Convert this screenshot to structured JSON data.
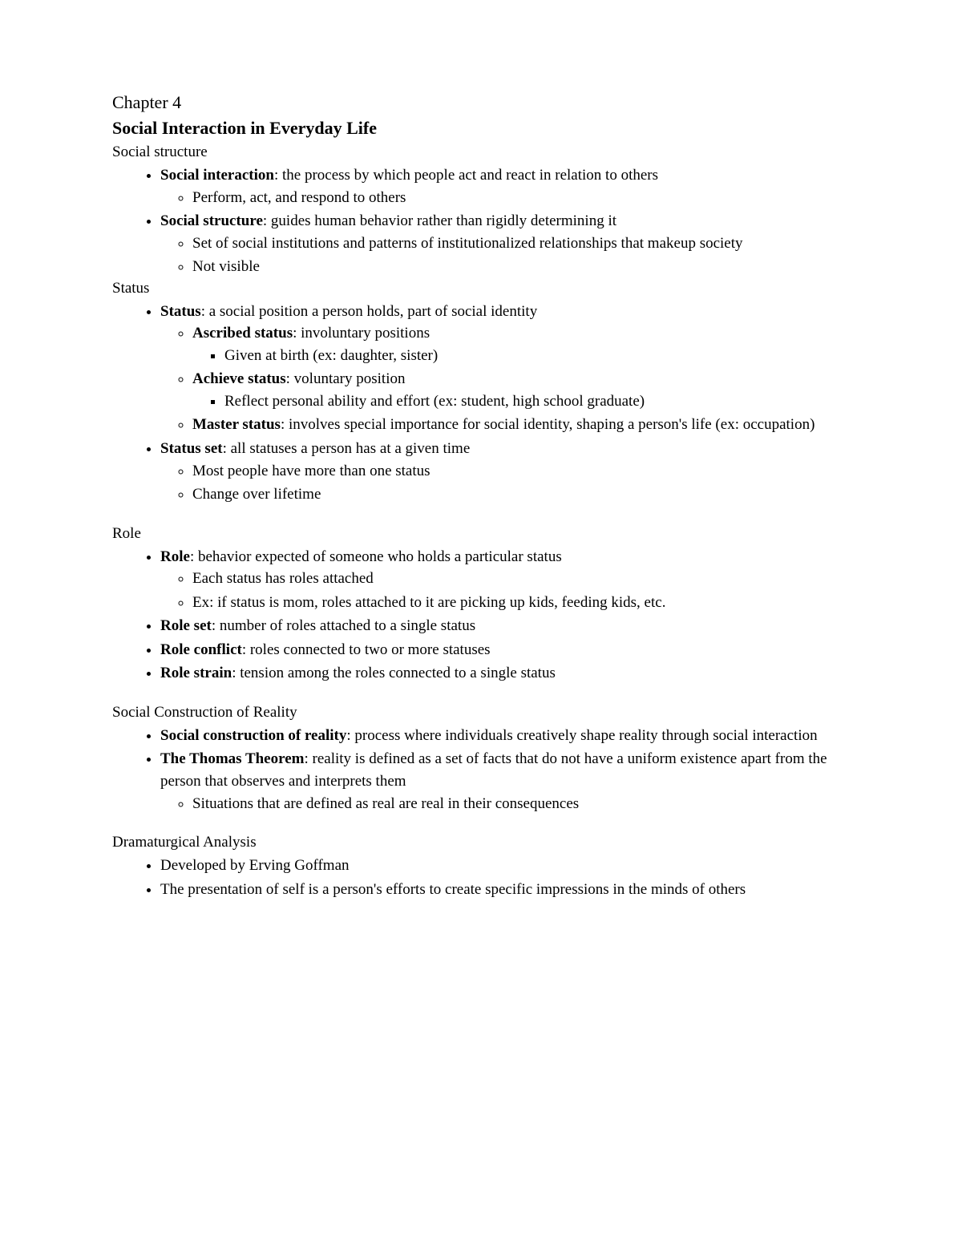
{
  "chapter": "Chapter 4",
  "title": "Social Interaction in Everyday Life",
  "sections": {
    "s1": {
      "heading": "Social structure",
      "b1_term": "Social interaction",
      "b1_def": ": the process by which people act and react in relation to others",
      "b1_sub1": "Perform, act, and respond to others",
      "b2_term": "Social structure",
      "b2_def": ": guides human behavior rather than rigidly determining it",
      "b2_sub1": "Set of social institutions and patterns of institutionalized relationships that makeup society",
      "b2_sub2": "Not visible"
    },
    "s2": {
      "heading": "Status",
      "b1_term": "Status",
      "b1_def": ": a social position a person holds, part of social identity",
      "b1_sub1_term": "Ascribed status",
      "b1_sub1_def": ": involuntary positions",
      "b1_sub1_sq1": "Given at birth (ex: daughter, sister)",
      "b1_sub2_term": "Achieve status",
      "b1_sub2_def": ": voluntary position",
      "b1_sub2_sq1": "Reflect personal ability and effort (ex: student, high school graduate)",
      "b1_sub3_term": "Master status",
      "b1_sub3_def": ": involves special importance for social identity, shaping a person's life (ex: occupation)",
      "b2_term": "Status set",
      "b2_def": ": all statuses a person has at a given time",
      "b2_sub1": "Most people have more than one status",
      "b2_sub2": "Change over lifetime"
    },
    "s3": {
      "heading": "Role",
      "b1_term": "Role",
      "b1_def": ": behavior expected of someone who holds a particular status",
      "b1_sub1": "Each status has roles attached",
      "b1_sub2": "Ex: if status is mom, roles attached to it are picking up kids, feeding kids, etc.",
      "b2_term": "Role set",
      "b2_def": ": number of roles attached to a single status",
      "b3_term": "Role conflict",
      "b3_def": ": roles connected to two or more statuses",
      "b4_term": "Role strain",
      "b4_def": ": tension among the roles connected to a single status"
    },
    "s4": {
      "heading": "Social Construction of Reality",
      "b1_term": "Social construction of reality",
      "b1_def": ": process where individuals creatively shape reality through social interaction",
      "b2_term": "The Thomas Theorem",
      "b2_def": ": reality is defined as a set of facts that do not have a uniform existence apart from the person that observes and interprets them",
      "b2_sub1": "Situations that are defined as real are real in their consequences"
    },
    "s5": {
      "heading": "Dramaturgical Analysis",
      "b1": "Developed by Erving Goffman",
      "b2": "The presentation of self is a person's efforts to create specific impressions in the minds of others"
    }
  }
}
